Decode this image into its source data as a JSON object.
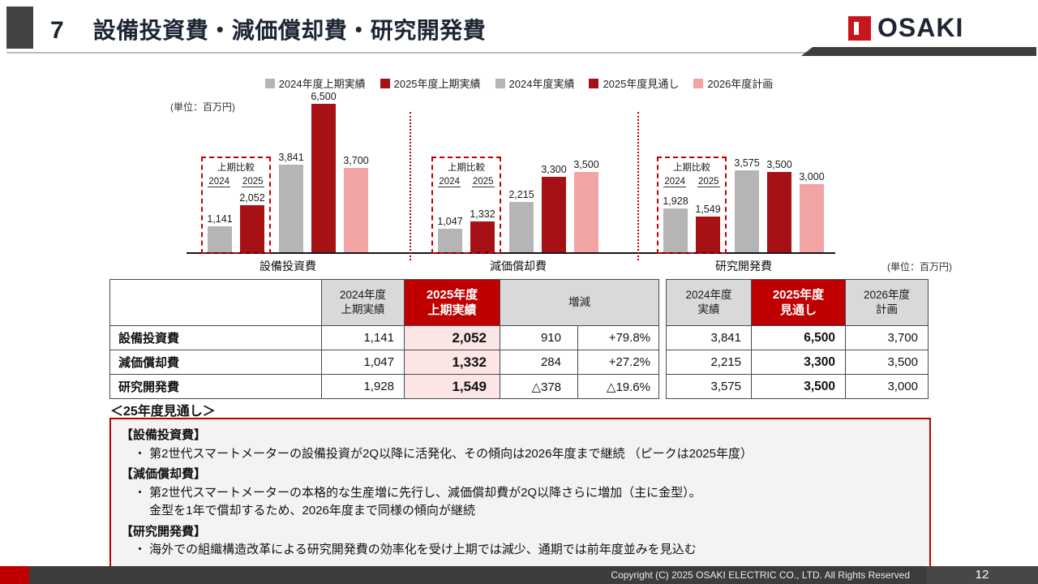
{
  "slide": {
    "number": "7",
    "title": "設備投資費・減価償却費・研究開発費",
    "logo_text": "OSAKI",
    "unit_label_left": "(単位：百万円)",
    "unit_label_right": "(単位：百万円)"
  },
  "chart_data": {
    "type": "bar",
    "unit": "百万円",
    "legend": [
      "2024年度上期実績",
      "2025年度上期実績",
      "2024年度実績",
      "2025年度見通し",
      "2026年度計画"
    ],
    "series_colors": [
      "#B5B5B5",
      "#A61116",
      "#B5B5B5",
      "#A61116",
      "#F2A3A3"
    ],
    "ymax": 6500,
    "comparison_box": {
      "title": "上期比較",
      "years": [
        "2024",
        "2025"
      ]
    },
    "groups": [
      {
        "label": "設備投資費",
        "values": [
          1141,
          2052,
          3841,
          6500,
          3700
        ],
        "labels": [
          "1,141",
          "2,052",
          "3,841",
          "6,500",
          "3,700"
        ]
      },
      {
        "label": "減価償却費",
        "values": [
          1047,
          1332,
          2215,
          3300,
          3500
        ],
        "labels": [
          "1,047",
          "1,332",
          "2,215",
          "3,300",
          "3,500"
        ]
      },
      {
        "label": "研究開発費",
        "values": [
          1928,
          1549,
          3575,
          3500,
          3000
        ],
        "labels": [
          "1,928",
          "1,549",
          "3,575",
          "3,500",
          "3,000"
        ]
      }
    ]
  },
  "table": {
    "headers": {
      "col1": [
        "2024年度",
        "上期実績"
      ],
      "col2": [
        "2025年度",
        "上期実績"
      ],
      "col3": "増減",
      "col4": [
        "2024年度",
        "実績"
      ],
      "col5": [
        "2025年度",
        "見通し"
      ],
      "col6": [
        "2026年度",
        "計画"
      ]
    },
    "rows": [
      {
        "label": "設備投資費",
        "h1_2024": "1,141",
        "h1_2025": "2,052",
        "diff": "910",
        "diff_pct": "+79.8%",
        "fy2024": "3,841",
        "fy2025": "6,500",
        "fy2026": "3,700"
      },
      {
        "label": "減価償却費",
        "h1_2024": "1,047",
        "h1_2025": "1,332",
        "diff": "284",
        "diff_pct": "+27.2%",
        "fy2024": "2,215",
        "fy2025": "3,300",
        "fy2026": "3,500"
      },
      {
        "label": "研究開発費",
        "h1_2024": "1,928",
        "h1_2025": "1,549",
        "diff": "△378",
        "diff_pct": "△19.6%",
        "fy2024": "3,575",
        "fy2025": "3,500",
        "fy2026": "3,000"
      }
    ]
  },
  "outlook": {
    "heading": "＜25年度見通し＞",
    "sections": [
      {
        "title": "【設備投資費】",
        "lines": [
          "・ 第2世代スマートメーターの設備投資が2Q以降に活発化、その傾向は2026年度まで継続 （ピークは2025年度）"
        ]
      },
      {
        "title": "【減価償却費】",
        "lines": [
          "・ 第2世代スマートメーターの本格的な生産増に先行し、減価償却費が2Q以降さらに増加（主に金型）。",
          "　 金型を1年で償却するため、2026年度まで同様の傾向が継続"
        ]
      },
      {
        "title": "【研究開発費】",
        "lines": [
          "・ 海外での組織構造改革による研究開発費の効率化を受け上期では減少、通期では前年度並みを見込む"
        ]
      }
    ]
  },
  "footer": {
    "copyright": "Copyright (C) 2025 OSAKI ELECTRIC CO., LTD. All Rights Reserved",
    "page": "12"
  }
}
